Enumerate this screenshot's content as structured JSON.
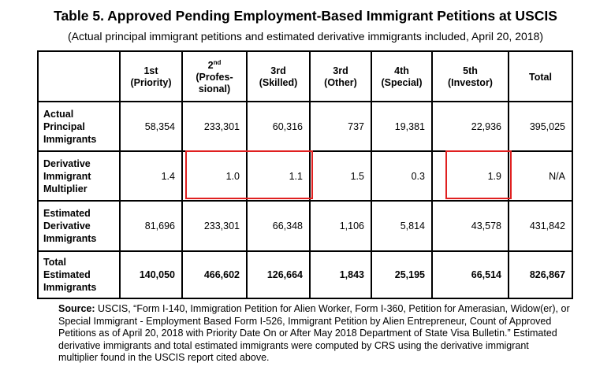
{
  "title": "Table 5. Approved Pending Employment-Based Immigrant Petitions at USCIS",
  "subtitle": "(Actual principal immigrant petitions and estimated derivative immigrants included, April 20, 2018)",
  "columns": [
    {
      "line1": "1st",
      "line2": "(Priority)"
    },
    {
      "sup": "nd",
      "base": "2",
      "line1": "(Profes-",
      "line2": "sional)"
    },
    {
      "line1": "3rd",
      "line2": "(Skilled)"
    },
    {
      "line1": "3rd",
      "line2": "(Other)"
    },
    {
      "line1": "4th",
      "line2": "(Special)"
    },
    {
      "line1": "5th",
      "line2": "(Investor)"
    },
    {
      "line1": "Total"
    }
  ],
  "rows": [
    {
      "label": [
        "Actual",
        "Principal",
        "Immigrants"
      ],
      "values": [
        "58,354",
        "233,301",
        "60,316",
        "737",
        "19,381",
        "22,936",
        "395,025"
      ]
    },
    {
      "label": [
        "Derivative",
        "Immigrant",
        "Multiplier"
      ],
      "values": [
        "1.4",
        "1.0",
        "1.1",
        "1.5",
        "0.3",
        "1.9",
        "N/A"
      ]
    },
    {
      "label": [
        "Estimated",
        "Derivative",
        "Immigrants"
      ],
      "values": [
        "81,696",
        "233,301",
        "66,348",
        "1,106",
        "5,814",
        "43,578",
        "431,842"
      ]
    },
    {
      "label": [
        "Total",
        "Estimated",
        "Immigrants"
      ],
      "values": [
        "140,050",
        "466,602",
        "126,664",
        "1,843",
        "25,195",
        "66,514",
        "826,867"
      ]
    }
  ],
  "highlight_color": "#e02020",
  "source": {
    "label": "Source:",
    "text": "USCIS, “Form I-140, Immigration Petition for Alien Worker, Form I-360, Petition for Amerasian, Widow(er), or Special Immigrant - Employment Based Form I-526, Immigrant Petition by Alien Entrepreneur, Count of Approved Petitions as of April 20, 2018 with Priority Date On or After May 2018 Department of State Visa Bulletin.” Estimated derivative immigrants and total estimated immigrants were computed by CRS using the derivative immigrant multiplier found in the USCIS report cited above."
  }
}
